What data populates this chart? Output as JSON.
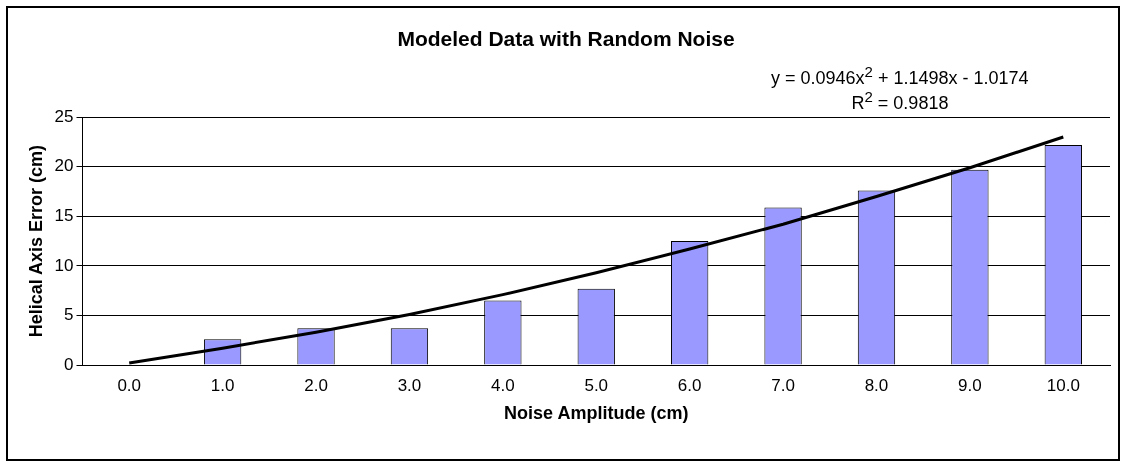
{
  "chart_data": {
    "type": "bar",
    "title": "Modeled Data with Random Noise",
    "xlabel": "Noise Amplitude (cm)",
    "ylabel": "Helical Axis Error (cm)",
    "categories": [
      "0.0",
      "1.0",
      "2.0",
      "3.0",
      "4.0",
      "5.0",
      "6.0",
      "7.0",
      "8.0",
      "9.0",
      "10.0"
    ],
    "series": [
      {
        "color": "#9999ff",
        "values": [
          0,
          2.6,
          3.7,
          3.7,
          6.5,
          7.7,
          12.5,
          15.9,
          17.6,
          19.7,
          22.2
        ]
      },
      {
        "type": "line",
        "color": "#000000",
        "values": [
          0.2,
          1.7,
          3.3,
          5.1,
          7.1,
          9.3,
          11.7,
          14.2,
          17.0,
          19.9,
          23.0
        ]
      }
    ],
    "ylim": [
      0,
      25
    ],
    "yticks": [
      0,
      5,
      10,
      15,
      20,
      25
    ],
    "grid": "y",
    "legend": false,
    "marker": "none",
    "line_style": "solid",
    "annotations": [
      "y = 0.0946x$^{2}$ + 1.1498x - 1.0174",
      "R$^{2}$ = 0.9818"
    ]
  }
}
